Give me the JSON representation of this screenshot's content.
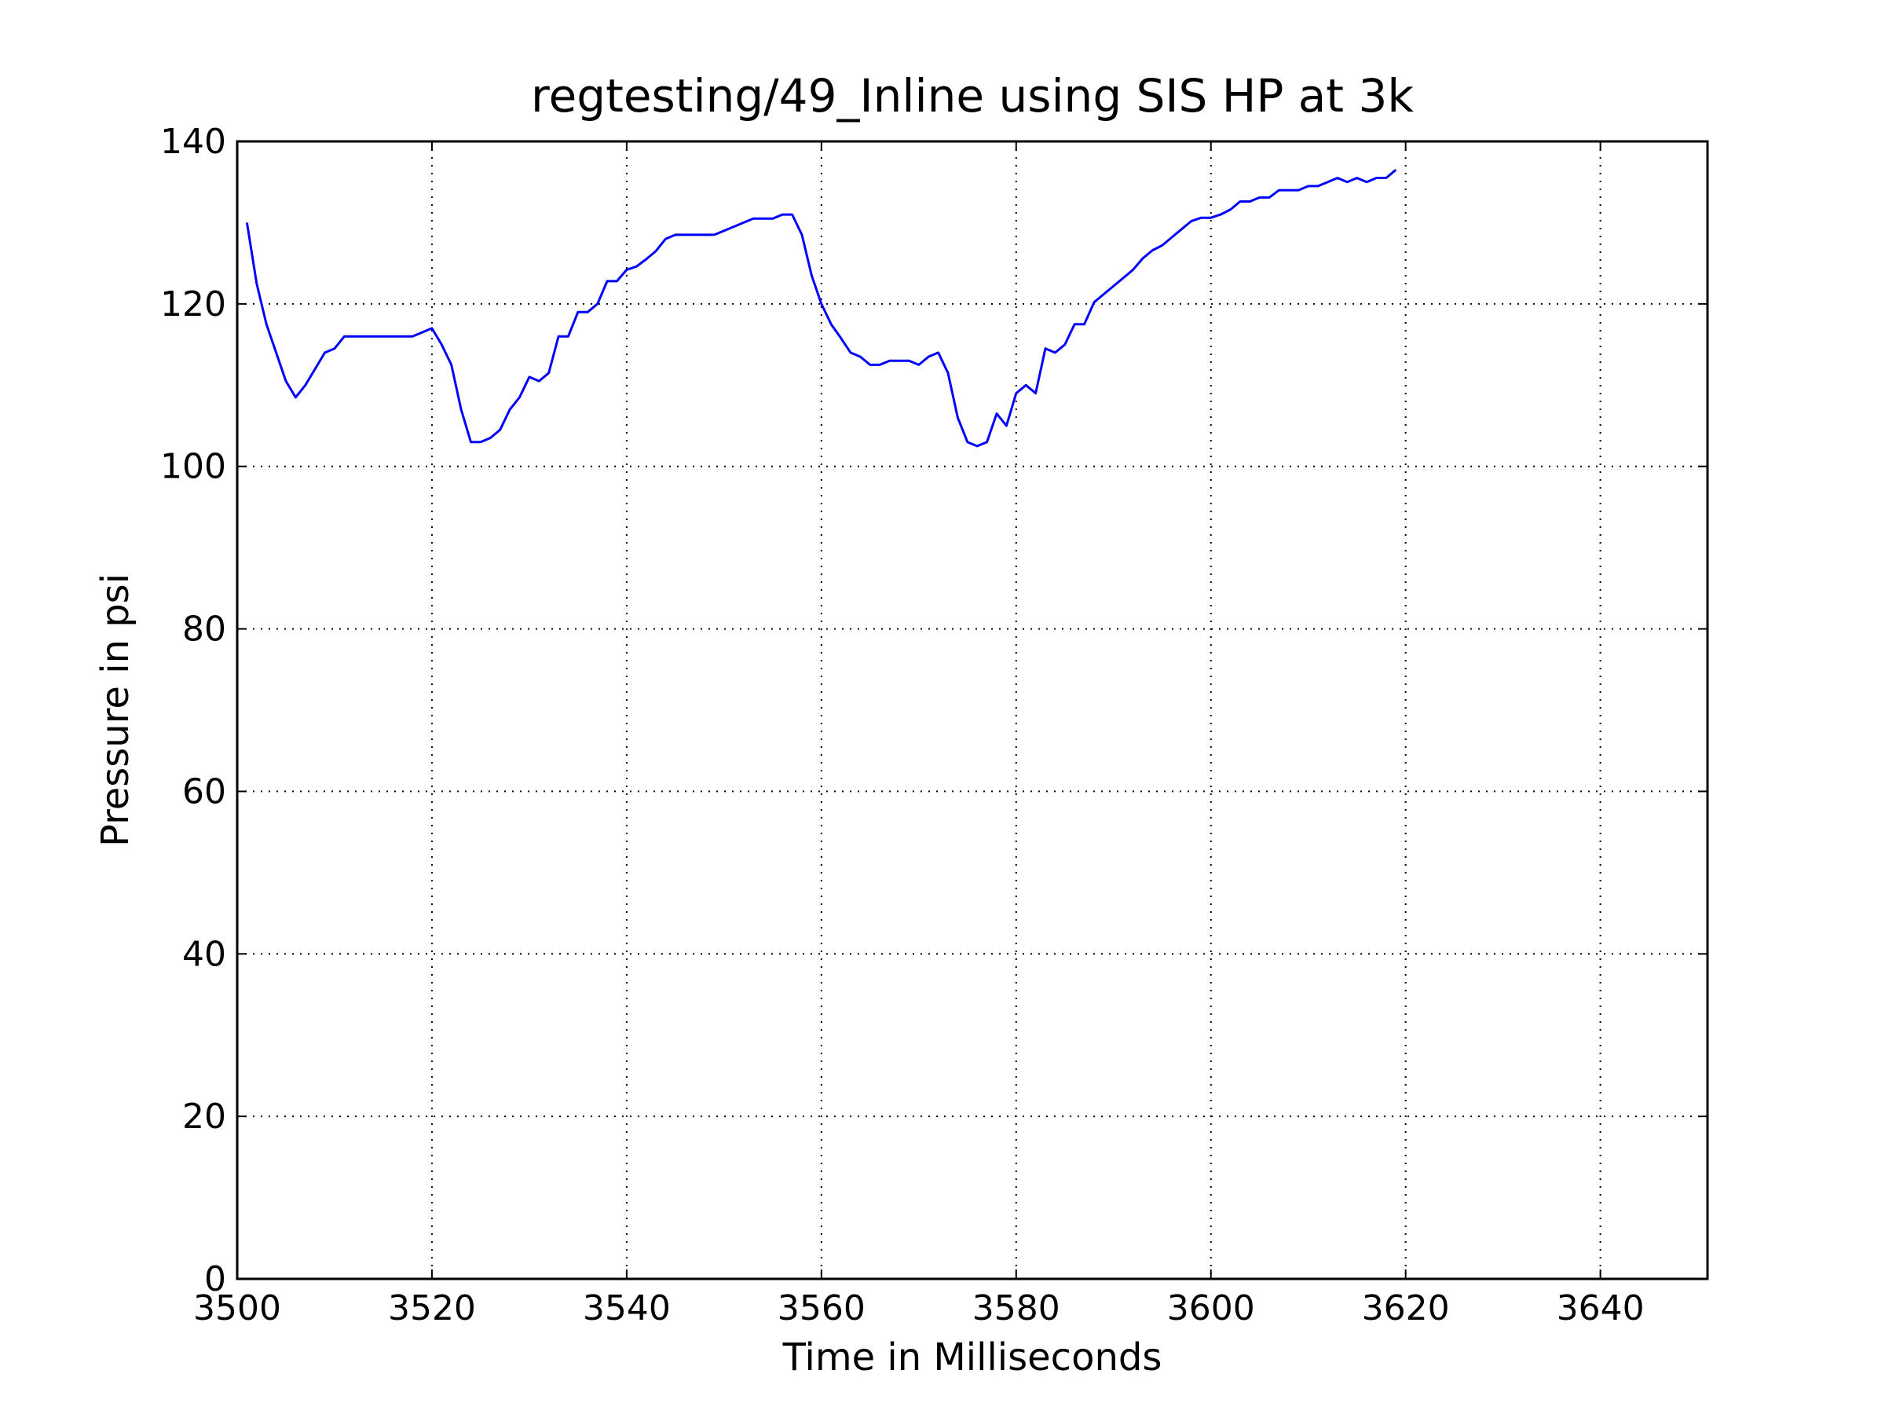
{
  "chart_data": {
    "type": "line",
    "title": "regtesting/49_Inline using SIS HP at 3k",
    "xlabel": "Time in Milliseconds",
    "ylabel": "Pressure in psi",
    "xlim": [
      3500,
      3651
    ],
    "ylim": [
      0,
      140
    ],
    "xticks": [
      3500,
      3520,
      3540,
      3560,
      3580,
      3600,
      3620,
      3640
    ],
    "yticks": [
      0,
      20,
      40,
      60,
      80,
      100,
      120,
      140
    ],
    "grid": true,
    "series_color": "#0000ff",
    "series": [
      {
        "x": [
          3501,
          3502,
          3503,
          3504,
          3505,
          3506,
          3507,
          3508,
          3509,
          3510,
          3511,
          3512,
          3513,
          3514,
          3515,
          3516,
          3517,
          3518,
          3519,
          3520,
          3521,
          3522,
          3523,
          3524,
          3525,
          3526,
          3527,
          3528,
          3529,
          3530,
          3531,
          3532,
          3533,
          3534,
          3535,
          3536,
          3537,
          3538,
          3539,
          3540,
          3541,
          3542,
          3543,
          3544,
          3545,
          3546,
          3547,
          3548,
          3549,
          3550,
          3551,
          3552,
          3553,
          3554,
          3555,
          3556,
          3557,
          3558,
          3559,
          3560,
          3561,
          3562,
          3563,
          3564,
          3565,
          3566,
          3567,
          3568,
          3569,
          3570,
          3571,
          3572,
          3573,
          3574,
          3575,
          3576,
          3577,
          3578,
          3579,
          3580,
          3581,
          3582,
          3583,
          3584,
          3585,
          3586,
          3587,
          3588,
          3589,
          3590,
          3591,
          3592,
          3593,
          3594,
          3595,
          3596,
          3597,
          3598,
          3599,
          3600,
          3601,
          3602,
          3603,
          3604,
          3605,
          3606,
          3607,
          3608,
          3609,
          3610,
          3611,
          3612,
          3613,
          3614,
          3615,
          3616,
          3617,
          3618,
          3619
        ],
        "y": [
          130,
          122.5,
          117.5,
          114,
          110.5,
          108.5,
          110,
          112,
          114,
          114.5,
          116,
          116,
          116,
          116,
          116,
          116,
          116,
          116,
          116.5,
          117,
          115,
          112.5,
          107,
          103,
          103,
          103.5,
          104.5,
          107,
          108.5,
          111,
          110.5,
          111.5,
          116,
          116,
          119,
          119,
          120,
          122.8,
          122.8,
          124.2,
          124.6,
          125.5,
          126.5,
          128,
          128.5,
          128.5,
          128.5,
          128.5,
          128.5,
          129,
          129.5,
          130,
          130.5,
          130.5,
          130.5,
          131,
          131,
          128.5,
          123.5,
          120,
          117.5,
          115.8,
          114,
          113.5,
          112.5,
          112.5,
          113,
          113,
          113,
          112.5,
          113.5,
          114,
          111.5,
          106,
          103,
          102.5,
          103,
          106.5,
          105,
          109,
          110,
          109,
          114.5,
          114,
          115,
          117.5,
          117.5,
          120.2,
          121.2,
          122.2,
          123.2,
          124.2,
          125.6,
          126.6,
          127.2,
          128.2,
          129.2,
          130.2,
          130.6,
          130.6,
          131,
          131.6,
          132.6,
          132.6,
          133.1,
          133.1,
          134,
          134,
          134,
          134.5,
          134.5,
          135,
          135.5,
          135,
          135.5,
          135,
          135.5,
          135.5,
          136.5
        ]
      }
    ]
  }
}
